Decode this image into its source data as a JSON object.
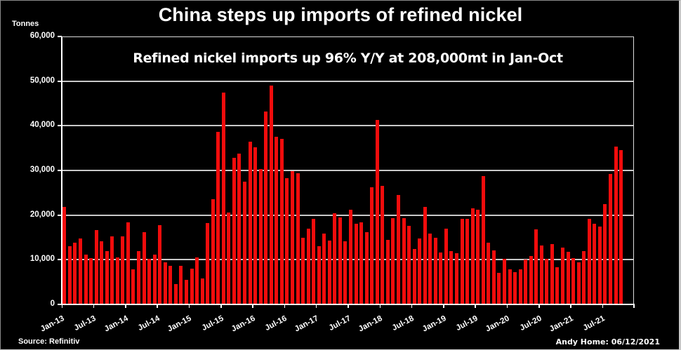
{
  "chart_data": {
    "type": "bar",
    "title": "China steps up imports of refined nickel",
    "subtitle": "Refined nickel imports up 96% Y/Y at 208,000mt in Jan-Oct",
    "xlabel": "",
    "ylabel": "Tonnes",
    "ylim": [
      0,
      60000
    ],
    "yticks": [
      0,
      10000,
      20000,
      30000,
      40000,
      50000,
      60000
    ],
    "ytick_labels": [
      "0",
      "10,000",
      "20,000",
      "30,000",
      "40,000",
      "50,000",
      "60,000"
    ],
    "grid": true,
    "legend": null,
    "bar_color": "#f20c0c",
    "background": "#000000",
    "xtick_labels": [
      "Jan-13",
      "Jul-13",
      "Jan-14",
      "Jul-14",
      "Jan-15",
      "Jul-15",
      "Jan-16",
      "Jul-16",
      "Jan-17",
      "Jul-17",
      "Jan-18",
      "Jul-18",
      "Jan-19",
      "Jul-19",
      "Jan-20",
      "Jul-20",
      "Jan-21",
      "Jul-21"
    ],
    "categories": [
      "Jan-13",
      "Feb-13",
      "Mar-13",
      "Apr-13",
      "May-13",
      "Jun-13",
      "Jul-13",
      "Aug-13",
      "Sep-13",
      "Oct-13",
      "Nov-13",
      "Dec-13",
      "Jan-14",
      "Feb-14",
      "Mar-14",
      "Apr-14",
      "May-14",
      "Jun-14",
      "Jul-14",
      "Aug-14",
      "Sep-14",
      "Oct-14",
      "Nov-14",
      "Dec-14",
      "Jan-15",
      "Feb-15",
      "Mar-15",
      "Apr-15",
      "May-15",
      "Jun-15",
      "Jul-15",
      "Aug-15",
      "Sep-15",
      "Oct-15",
      "Nov-15",
      "Dec-15",
      "Jan-16",
      "Feb-16",
      "Mar-16",
      "Apr-16",
      "May-16",
      "Jun-16",
      "Jul-16",
      "Aug-16",
      "Sep-16",
      "Oct-16",
      "Nov-16",
      "Dec-16",
      "Jan-17",
      "Feb-17",
      "Mar-17",
      "Apr-17",
      "May-17",
      "Jun-17",
      "Jul-17",
      "Aug-17",
      "Sep-17",
      "Oct-17",
      "Nov-17",
      "Dec-17",
      "Jan-18",
      "Feb-18",
      "Mar-18",
      "Apr-18",
      "May-18",
      "Jun-18",
      "Jul-18",
      "Aug-18",
      "Sep-18",
      "Oct-18",
      "Nov-18",
      "Dec-18",
      "Jan-19",
      "Feb-19",
      "Mar-19",
      "Apr-19",
      "May-19",
      "Jun-19",
      "Jul-19",
      "Aug-19",
      "Sep-19",
      "Oct-19",
      "Nov-19",
      "Dec-19",
      "Jan-20",
      "Feb-20",
      "Mar-20",
      "Apr-20",
      "May-20",
      "Jun-20",
      "Jul-20",
      "Aug-20",
      "Sep-20",
      "Oct-20",
      "Nov-20",
      "Dec-20",
      "Jan-21",
      "Feb-21",
      "Mar-21",
      "Apr-21",
      "May-21",
      "Jun-21",
      "Jul-21",
      "Aug-21",
      "Sep-21",
      "Oct-21"
    ],
    "series": [
      {
        "name": "Refined nickel imports (tonnes)",
        "values": [
          21900,
          13100,
          13800,
          14800,
          11100,
          10300,
          16600,
          14200,
          11900,
          15300,
          10600,
          15300,
          18300,
          7900,
          12000,
          16200,
          10200,
          11200,
          17800,
          9500,
          8600,
          4500,
          8600,
          5500,
          8000,
          10500,
          5800,
          18200,
          23600,
          38700,
          47500,
          20500,
          32800,
          33700,
          27500,
          36500,
          35200,
          30300,
          43200,
          49000,
          37500,
          37100,
          28200,
          29800,
          29400,
          15000,
          16900,
          19100,
          13000,
          15900,
          14300,
          20400,
          19500,
          14200,
          21200,
          18100,
          18300,
          16200,
          26300,
          41300,
          26500,
          14500,
          19300,
          24500,
          19300,
          17600,
          12400,
          14700,
          21800,
          15800,
          14900,
          11700,
          16900,
          12000,
          11400,
          19100,
          19100,
          21500,
          21200,
          28700,
          13800,
          12100,
          7100,
          10200,
          7900,
          7300,
          7800,
          10000,
          10800,
          16800,
          13200,
          10200,
          13500,
          8400,
          12800,
          11800,
          10300,
          9400,
          12000,
          19200,
          18000,
          17400,
          22400,
          29200,
          35400,
          34600
        ]
      }
    ]
  },
  "footer": {
    "source": "Source: Refinitiv",
    "credit": "Andy Home: 06/12/2021"
  }
}
